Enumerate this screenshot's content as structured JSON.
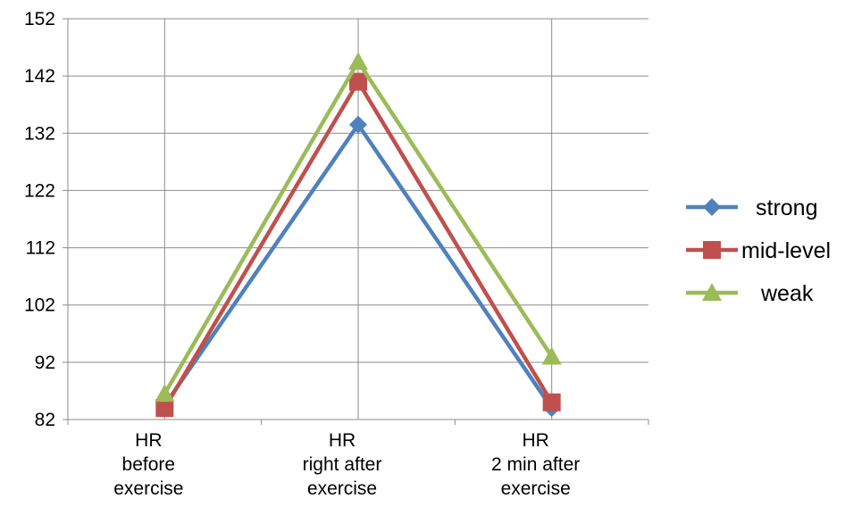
{
  "chart_data": {
    "type": "line",
    "title": "",
    "xlabel": "",
    "ylabel": "",
    "categories": [
      [
        "HR",
        "before",
        "exercise"
      ],
      [
        "HR",
        "right after",
        "exercise"
      ],
      [
        "HR",
        "2 min after",
        "exercise"
      ]
    ],
    "ylim": [
      82,
      152
    ],
    "yticks": [
      82,
      92,
      102,
      112,
      122,
      132,
      142,
      152
    ],
    "grid": true,
    "legend_position": "right",
    "series": [
      {
        "name": "strong",
        "values": [
          84.5,
          133.5,
          84
        ],
        "color": "#4f81bd",
        "marker": "diamond"
      },
      {
        "name": "mid-level",
        "values": [
          84,
          141,
          85
        ],
        "color": "#c0504d",
        "marker": "square"
      },
      {
        "name": "weak",
        "values": [
          86.5,
          144.5,
          93
        ],
        "color": "#9bbb59",
        "marker": "triangle"
      }
    ]
  }
}
